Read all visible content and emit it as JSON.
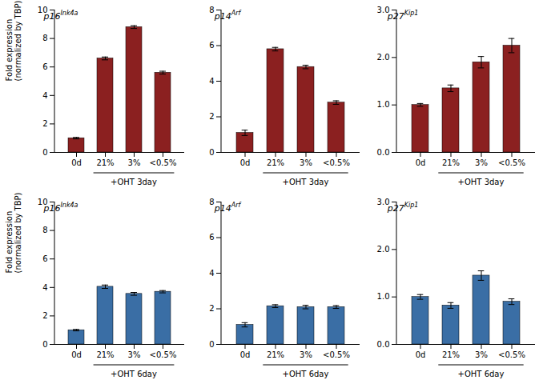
{
  "chart_data": [
    {
      "type": "bar",
      "title": "p16",
      "subtitle": "Ink4a",
      "ylabel": "Fold expression\n(normalized by TBP)",
      "xlabel": "+OHT 3day",
      "categories": [
        "0d",
        "21%",
        "3%",
        "<0.5%"
      ],
      "values": [
        1.0,
        6.6,
        8.8,
        5.6
      ],
      "errors": [
        0.05,
        0.1,
        0.1,
        0.1
      ],
      "color": "#8B2020",
      "ylim": [
        0,
        10
      ],
      "yticks": [
        0,
        2,
        4,
        6,
        8,
        10
      ]
    },
    {
      "type": "bar",
      "title": "p14",
      "subtitle": "Arf",
      "xlabel": "+OHT 3day",
      "categories": [
        "0d",
        "21%",
        "3%",
        "<0.5%"
      ],
      "values": [
        1.1,
        5.8,
        4.8,
        2.8
      ],
      "errors": [
        0.15,
        0.1,
        0.1,
        0.1
      ],
      "color": "#8B2020",
      "ylim": [
        0,
        8
      ],
      "yticks": [
        0,
        2,
        4,
        6,
        8
      ]
    },
    {
      "type": "bar",
      "title": "p27",
      "subtitle": "Kip1",
      "xlabel": "+OHT 3day",
      "categories": [
        "0d",
        "21%",
        "3%",
        "<0.5%"
      ],
      "values": [
        1.0,
        1.35,
        1.9,
        2.25
      ],
      "errors": [
        0.03,
        0.07,
        0.12,
        0.15
      ],
      "color": "#8B2020",
      "ylim": [
        0,
        3
      ],
      "yticks": [
        0,
        1,
        2,
        3
      ]
    },
    {
      "type": "bar",
      "title": "p16",
      "subtitle": "Ink4a",
      "ylabel": "Fold expression\n(normalized by TBP)",
      "xlabel": "+OHT 6day",
      "categories": [
        "0d",
        "21%",
        "3%",
        "<0.5%"
      ],
      "values": [
        1.0,
        4.05,
        3.55,
        3.7
      ],
      "errors": [
        0.05,
        0.12,
        0.1,
        0.08
      ],
      "color": "#3A6EA5",
      "ylim": [
        0,
        10
      ],
      "yticks": [
        0,
        2,
        4,
        6,
        8,
        10
      ]
    },
    {
      "type": "bar",
      "title": "p14",
      "subtitle": "Arf",
      "xlabel": "+OHT 6day",
      "categories": [
        "0d",
        "21%",
        "3%",
        "<0.5%"
      ],
      "values": [
        1.1,
        2.15,
        2.1,
        2.1
      ],
      "errors": [
        0.12,
        0.08,
        0.1,
        0.08
      ],
      "color": "#3A6EA5",
      "ylim": [
        0,
        8
      ],
      "yticks": [
        0,
        2,
        4,
        6,
        8
      ]
    },
    {
      "type": "bar",
      "title": "p27",
      "subtitle": "Kip1",
      "xlabel": "+OHT 6day",
      "categories": [
        "0d",
        "21%",
        "3%",
        "<0.5%"
      ],
      "values": [
        1.0,
        0.82,
        1.45,
        0.9
      ],
      "errors": [
        0.05,
        0.06,
        0.1,
        0.06
      ],
      "color": "#3A6EA5",
      "ylim": [
        0,
        3
      ],
      "yticks": [
        0,
        1,
        2,
        3
      ]
    }
  ]
}
